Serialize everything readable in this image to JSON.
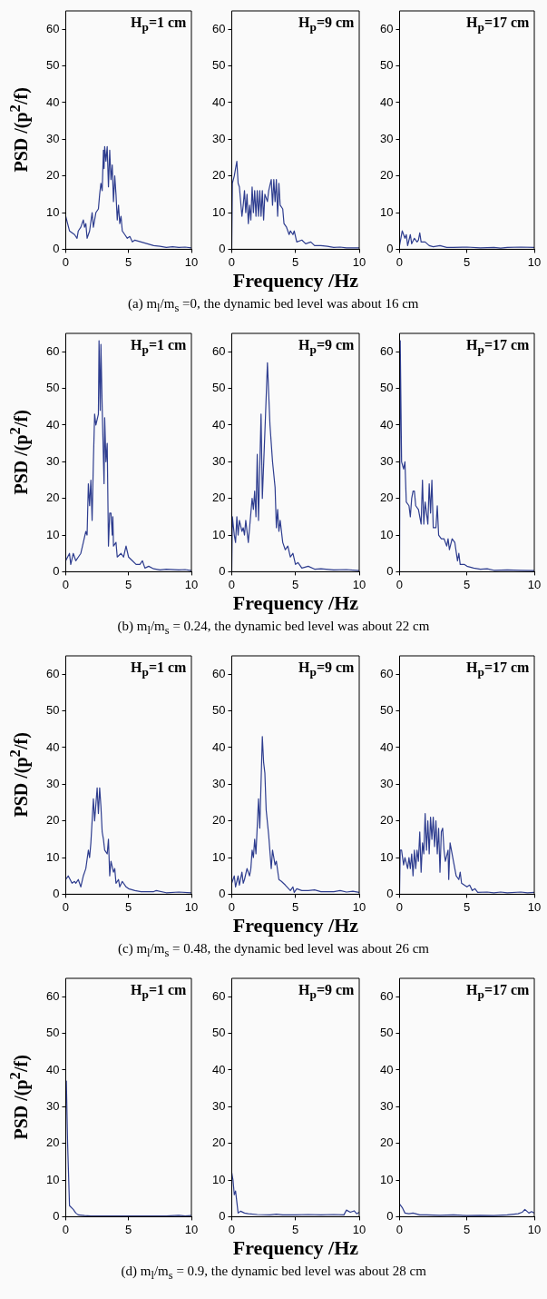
{
  "chart_data": [
    {
      "type": "line",
      "title": "H$_{p}$=1 cm",
      "ylabel": "PSD /(p$^{2}$/f)",
      "xlim": [
        0,
        10
      ],
      "xticks": [
        0,
        5,
        10
      ],
      "ylim": [
        0,
        65
      ],
      "yticks": [
        0,
        10,
        20,
        30,
        40,
        50,
        60
      ],
      "series": [
        {
          "color": "#2e3d8f",
          "x": [
            0,
            0.3,
            0.7,
            0.9,
            1.0,
            1.2,
            1.4,
            1.5,
            1.6,
            1.7,
            1.9,
            2.1,
            2.2,
            2.4,
            2.6,
            2.7,
            2.8,
            2.9,
            3.0,
            3.05,
            3.1,
            3.2,
            3.3,
            3.4,
            3.5,
            3.6,
            3.7,
            3.8,
            3.9,
            4.0,
            4.1,
            4.2,
            4.3,
            4.4,
            4.5,
            4.7,
            4.9,
            5.1,
            5.3,
            5.5,
            6,
            6.5,
            7,
            7.5,
            8,
            8.5,
            9,
            9.5,
            10
          ],
          "values": [
            9,
            5,
            4,
            3,
            5,
            6,
            8,
            6,
            7,
            3,
            5,
            10,
            6,
            10,
            11,
            15,
            18,
            16,
            27,
            22,
            28,
            24,
            28,
            17,
            27,
            19,
            23,
            13,
            20,
            15,
            8,
            12,
            7,
            9,
            5,
            4,
            3,
            3.5,
            2,
            2.5,
            2,
            1.5,
            1,
            0.8,
            0.5,
            0.7,
            0.5,
            0.6,
            0.4
          ]
        }
      ]
    },
    {
      "type": "line",
      "title": "H$_{p}$=9 cm",
      "xlabel": "Frequency /Hz",
      "annotations": [
        "(a) m$_{l}$/m$_{s}$ =0, the dynamic bed level was about 16 cm"
      ],
      "xlim": [
        0,
        10
      ],
      "xticks": [
        0,
        5,
        10
      ],
      "ylim": [
        0,
        65
      ],
      "yticks": [
        0,
        10,
        20,
        30,
        40,
        50,
        60
      ],
      "series": [
        {
          "color": "#2e3d8f",
          "x": [
            0,
            0.05,
            0.2,
            0.4,
            0.5,
            0.6,
            0.8,
            0.9,
            1.0,
            1.1,
            1.2,
            1.3,
            1.4,
            1.5,
            1.6,
            1.7,
            1.8,
            1.9,
            2.0,
            2.1,
            2.2,
            2.3,
            2.4,
            2.5,
            2.6,
            2.8,
            2.9,
            3.1,
            3.2,
            3.3,
            3.4,
            3.5,
            3.6,
            3.7,
            3.8,
            4.0,
            4.1,
            4.3,
            4.5,
            4.6,
            4.8,
            4.9,
            5.1,
            5.5,
            5.8,
            6.2,
            6.5,
            7,
            7.5,
            8,
            8.5,
            9,
            10
          ],
          "values": [
            0,
            18,
            20,
            24,
            18,
            17,
            9,
            12,
            16,
            10,
            15,
            7,
            12,
            8,
            17,
            10,
            16,
            9,
            16,
            9,
            16,
            9,
            16,
            8,
            15,
            13,
            16,
            19,
            12,
            19,
            13,
            19,
            9,
            18,
            12,
            11,
            7,
            6,
            4,
            5,
            4,
            5,
            2,
            2.5,
            1.5,
            2,
            1,
            1,
            0.8,
            0.5,
            0.6,
            0.4,
            0.4
          ]
        }
      ]
    },
    {
      "type": "line",
      "title": "H$_{p}$=17 cm",
      "xlim": [
        0,
        10
      ],
      "xticks": [
        0,
        5,
        10
      ],
      "ylim": [
        0,
        65
      ],
      "yticks": [
        0,
        10,
        20,
        30,
        40,
        50,
        60
      ],
      "series": [
        {
          "color": "#2e3d8f",
          "x": [
            0,
            0.2,
            0.4,
            0.5,
            0.6,
            0.8,
            0.9,
            1.1,
            1.3,
            1.4,
            1.5,
            1.6,
            1.9,
            2.2,
            2.5,
            3,
            3.5,
            4,
            5,
            6,
            7,
            7.5,
            8,
            9,
            10
          ],
          "values": [
            1,
            5,
            3,
            4,
            1,
            4,
            1.5,
            3,
            2,
            2.5,
            4.5,
            2,
            2,
            1,
            0.7,
            1,
            0.5,
            0.5,
            0.6,
            0.4,
            0.5,
            0.3,
            0.5,
            0.6,
            0.5
          ]
        }
      ]
    },
    {
      "type": "line",
      "title": "H$_{p}$=1 cm",
      "ylabel": "PSD /(p$^{2}$/f)",
      "xlim": [
        0,
        10
      ],
      "xticks": [
        0,
        5,
        10
      ],
      "ylim": [
        0,
        65
      ],
      "yticks": [
        0,
        10,
        20,
        30,
        40,
        50,
        60
      ],
      "series": [
        {
          "color": "#2e3d8f",
          "x": [
            0,
            0.3,
            0.4,
            0.6,
            0.8,
            1.0,
            1.2,
            1.4,
            1.6,
            1.7,
            1.8,
            1.9,
            2.0,
            2.1,
            2.2,
            2.3,
            2.4,
            2.6,
            2.65,
            2.75,
            2.8,
            2.9,
            3.05,
            3.1,
            3.2,
            3.3,
            3.4,
            3.5,
            3.6,
            3.7,
            3.75,
            3.8,
            4.0,
            4.1,
            4.4,
            4.6,
            4.8,
            5.0,
            5.3,
            5.6,
            5.9,
            6.1,
            6.3,
            6.6,
            7,
            7.5,
            8,
            9,
            9.5,
            10
          ],
          "values": [
            3,
            5,
            2,
            5,
            3,
            4,
            5,
            8,
            11,
            10,
            24,
            18,
            25,
            14,
            30,
            43,
            40,
            43,
            63,
            44,
            62,
            45,
            24,
            42,
            30,
            35,
            7,
            16,
            16,
            10,
            15,
            7,
            8,
            4,
            5,
            4,
            7,
            4,
            3,
            2,
            2,
            3,
            1,
            1.5,
            0.8,
            0.5,
            0.7,
            0.5,
            0.6,
            0.3
          ]
        }
      ]
    },
    {
      "type": "line",
      "title": "H$_{p}$=9 cm",
      "xlabel": "Frequency /Hz",
      "annotations": [
        "(b) m$_{l}$/m$_{s}$ = 0.24, the dynamic bed level was about 22 cm"
      ],
      "xlim": [
        0,
        10
      ],
      "xticks": [
        0,
        5,
        10
      ],
      "ylim": [
        0,
        65
      ],
      "yticks": [
        0,
        10,
        20,
        30,
        40,
        50,
        60
      ],
      "series": [
        {
          "color": "#2e3d8f",
          "x": [
            0,
            0.05,
            0.2,
            0.3,
            0.4,
            0.5,
            0.6,
            0.8,
            0.9,
            1.0,
            1.1,
            1.3,
            1.4,
            1.6,
            1.7,
            1.8,
            1.9,
            2.0,
            2.1,
            2.3,
            2.4,
            2.6,
            2.8,
            3.0,
            3.2,
            3.4,
            3.5,
            3.6,
            3.7,
            3.8,
            4.0,
            4.2,
            4.4,
            4.6,
            4.8,
            5.0,
            5.2,
            5.5,
            6,
            6.5,
            7,
            8,
            9,
            10
          ],
          "values": [
            0,
            15,
            10,
            8,
            15,
            10,
            14,
            11,
            12,
            10,
            14,
            8,
            12,
            20,
            17,
            22,
            15,
            32,
            14,
            43,
            20,
            38,
            57,
            40,
            30,
            23,
            12,
            17,
            11,
            14,
            8,
            6,
            7,
            4,
            5,
            2,
            2.5,
            1,
            1.5,
            0.7,
            0.8,
            0.5,
            0.6,
            0.3
          ]
        }
      ]
    },
    {
      "type": "line",
      "title": "H$_{p}$=17 cm",
      "xlim": [
        0,
        10
      ],
      "xticks": [
        0,
        5,
        10
      ],
      "ylim": [
        0,
        65
      ],
      "yticks": [
        0,
        10,
        20,
        30,
        40,
        50,
        60
      ],
      "series": [
        {
          "color": "#2e3d8f",
          "x": [
            0,
            0.05,
            0.15,
            0.3,
            0.4,
            0.5,
            0.7,
            0.8,
            0.9,
            1.0,
            1.1,
            1.2,
            1.4,
            1.6,
            1.7,
            1.8,
            1.9,
            2.1,
            2.2,
            2.3,
            2.4,
            2.5,
            2.7,
            2.8,
            2.9,
            3.1,
            3.3,
            3.5,
            3.6,
            3.7,
            3.9,
            4.1,
            4.3,
            4.4,
            4.5,
            4.8,
            5.0,
            5.5,
            6,
            6.5,
            7,
            8,
            9,
            10
          ],
          "values": [
            0,
            63,
            30,
            28,
            30,
            19,
            18,
            15,
            20,
            22,
            22,
            18,
            17,
            13,
            25,
            13,
            19,
            13,
            24,
            16,
            25,
            12,
            12,
            18,
            10,
            9,
            9,
            7,
            9,
            6,
            9,
            8,
            3,
            5,
            2,
            2,
            1.5,
            1,
            0.7,
            0.8,
            0.4,
            0.5,
            0.4,
            0.3
          ]
        }
      ]
    },
    {
      "type": "line",
      "title": "H$_{p}$=1 cm",
      "ylabel": "PSD /(p$^{2}$/f)",
      "xlim": [
        0,
        10
      ],
      "xticks": [
        0,
        5,
        10
      ],
      "ylim": [
        0,
        65
      ],
      "yticks": [
        0,
        10,
        20,
        30,
        40,
        50,
        60
      ],
      "series": [
        {
          "color": "#2e3d8f",
          "x": [
            0,
            0.2,
            0.5,
            0.7,
            0.8,
            1.0,
            1.2,
            1.4,
            1.6,
            1.8,
            1.9,
            2.0,
            2.2,
            2.3,
            2.5,
            2.6,
            2.7,
            2.8,
            2.9,
            3.0,
            3.1,
            3.3,
            3.4,
            3.5,
            3.6,
            3.8,
            3.9,
            4.0,
            4.2,
            4.3,
            4.5,
            4.8,
            5.0,
            5.5,
            6,
            7,
            7.2,
            8,
            9,
            10
          ],
          "values": [
            4,
            5,
            3,
            3.5,
            3,
            4,
            2,
            5,
            7,
            12,
            10,
            14,
            26,
            20,
            29,
            22,
            29,
            24,
            17,
            15,
            12,
            11,
            15,
            5,
            9,
            6,
            7,
            3,
            4,
            2,
            3.5,
            2,
            1.5,
            1,
            0.7,
            0.7,
            1,
            0.4,
            0.6,
            0.4
          ]
        }
      ]
    },
    {
      "type": "line",
      "title": "H$_{p}$=9 cm",
      "xlabel": "Frequency /Hz",
      "annotations": [
        "(c) m$_{l}$/m$_{s}$ = 0.48, the dynamic bed level was about 26 cm"
      ],
      "xlim": [
        0,
        10
      ],
      "xticks": [
        0,
        5,
        10
      ],
      "ylim": [
        0,
        65
      ],
      "yticks": [
        0,
        10,
        20,
        30,
        40,
        50,
        60
      ],
      "series": [
        {
          "color": "#2e3d8f",
          "x": [
            0,
            0.2,
            0.3,
            0.5,
            0.6,
            0.8,
            0.9,
            1.0,
            1.2,
            1.4,
            1.5,
            1.6,
            1.7,
            1.8,
            1.9,
            2.1,
            2.2,
            2.4,
            2.5,
            2.6,
            2.7,
            2.9,
            3.1,
            3.2,
            3.4,
            3.5,
            3.7,
            3.9,
            4.2,
            4.6,
            4.8,
            4.9,
            5.1,
            5.5,
            6,
            6.5,
            7,
            8,
            8.5,
            9,
            9.5,
            10
          ],
          "values": [
            3,
            5,
            2,
            5,
            2.5,
            6,
            3,
            4,
            7,
            5,
            7,
            12,
            10,
            15,
            11,
            26,
            18,
            43,
            36,
            33,
            23,
            16,
            7,
            12,
            8,
            9,
            4,
            3.5,
            2.5,
            1,
            2,
            0.5,
            1.5,
            1,
            1,
            1.2,
            0.7,
            0.7,
            1,
            0.6,
            0.8,
            0.5
          ]
        }
      ]
    },
    {
      "type": "line",
      "title": "H$_{p}$=17 cm",
      "xlim": [
        0,
        10
      ],
      "xticks": [
        0,
        5,
        10
      ],
      "ylim": [
        0,
        65
      ],
      "yticks": [
        0,
        10,
        20,
        30,
        40,
        50,
        60
      ],
      "series": [
        {
          "color": "#2e3d8f",
          "x": [
            0,
            0.05,
            0.15,
            0.3,
            0.4,
            0.6,
            0.7,
            0.8,
            0.9,
            1.0,
            1.1,
            1.2,
            1.3,
            1.4,
            1.5,
            1.6,
            1.7,
            1.8,
            1.9,
            2.0,
            2.1,
            2.2,
            2.3,
            2.4,
            2.5,
            2.6,
            2.7,
            2.8,
            2.9,
            3.0,
            3.1,
            3.2,
            3.3,
            3.4,
            3.6,
            3.65,
            3.75,
            4.0,
            4.2,
            4.4,
            4.5,
            4.6,
            4.8,
            5.0,
            5.2,
            5.4,
            5.6,
            5.8,
            6.5,
            7,
            7.5,
            8,
            9,
            9.5,
            10
          ],
          "values": [
            0,
            12,
            12,
            8,
            10,
            7,
            10,
            7,
            11,
            5,
            12,
            7,
            12,
            9,
            17,
            6,
            14,
            11,
            22,
            12,
            20,
            11,
            21,
            15,
            21,
            13,
            20,
            11,
            18,
            6,
            17,
            18,
            12,
            9,
            12,
            4,
            14,
            9,
            5,
            4,
            6,
            3,
            2.5,
            2,
            2.5,
            1,
            1.5,
            0.5,
            0.6,
            0.4,
            0.6,
            0.4,
            0.6,
            0.4,
            0.5
          ]
        }
      ]
    },
    {
      "type": "line",
      "title": "H$_{p}$=1 cm",
      "ylabel": "PSD /(p$^{2}$/f)",
      "xlim": [
        0,
        10
      ],
      "xticks": [
        0,
        5,
        10
      ],
      "ylim": [
        0,
        65
      ],
      "yticks": [
        0,
        10,
        20,
        30,
        40,
        50,
        60
      ],
      "series": [
        {
          "color": "#2e3d8f",
          "x": [
            0,
            0.05,
            0.15,
            0.3,
            0.6,
            0.8,
            1.0,
            1.5,
            2,
            3,
            5,
            8,
            9,
            9.5,
            10
          ],
          "values": [
            37,
            37,
            20,
            3,
            2,
            1,
            0.5,
            0.3,
            0.2,
            0.2,
            0.2,
            0.2,
            0.4,
            0.2,
            0.3
          ]
        }
      ]
    },
    {
      "type": "line",
      "title": "H$_{p}$=9 cm",
      "xlabel": "Frequency /Hz",
      "annotations": [
        "(d) m$_{l}$/m$_{s}$ = 0.9, the dynamic bed level was about 28 cm"
      ],
      "xlim": [
        0,
        10
      ],
      "xticks": [
        0,
        5,
        10
      ],
      "ylim": [
        0,
        65
      ],
      "yticks": [
        0,
        10,
        20,
        30,
        40,
        50,
        60
      ],
      "series": [
        {
          "color": "#2e3d8f",
          "x": [
            0,
            0.1,
            0.2,
            0.3,
            0.5,
            0.7,
            1.0,
            1.3,
            2,
            3,
            3.5,
            4,
            5,
            6,
            7,
            8,
            8.8,
            9.0,
            9.3,
            9.6,
            9.8,
            10
          ],
          "values": [
            12,
            10,
            6,
            7,
            1,
            1.5,
            1,
            0.8,
            0.6,
            0.5,
            0.7,
            0.5,
            0.5,
            0.6,
            0.5,
            0.6,
            0.5,
            1.8,
            1.2,
            1.6,
            0.8,
            1.2
          ]
        }
      ]
    },
    {
      "type": "line",
      "title": "H$_{p}$=17 cm",
      "xlim": [
        0,
        10
      ],
      "xticks": [
        0,
        5,
        10
      ],
      "ylim": [
        0,
        65
      ],
      "yticks": [
        0,
        10,
        20,
        30,
        40,
        50,
        60
      ],
      "series": [
        {
          "color": "#2e3d8f",
          "x": [
            0,
            0.2,
            0.4,
            0.7,
            1.0,
            1.5,
            2,
            3,
            4,
            5,
            6,
            7,
            8,
            8.8,
            9.1,
            9.3,
            9.6,
            9.8,
            10
          ],
          "values": [
            3.5,
            2.5,
            1,
            0.8,
            1,
            0.5,
            0.5,
            0.4,
            0.5,
            0.3,
            0.4,
            0.3,
            0.5,
            0.8,
            1.2,
            2,
            1,
            1.4,
            1
          ]
        }
      ]
    }
  ]
}
